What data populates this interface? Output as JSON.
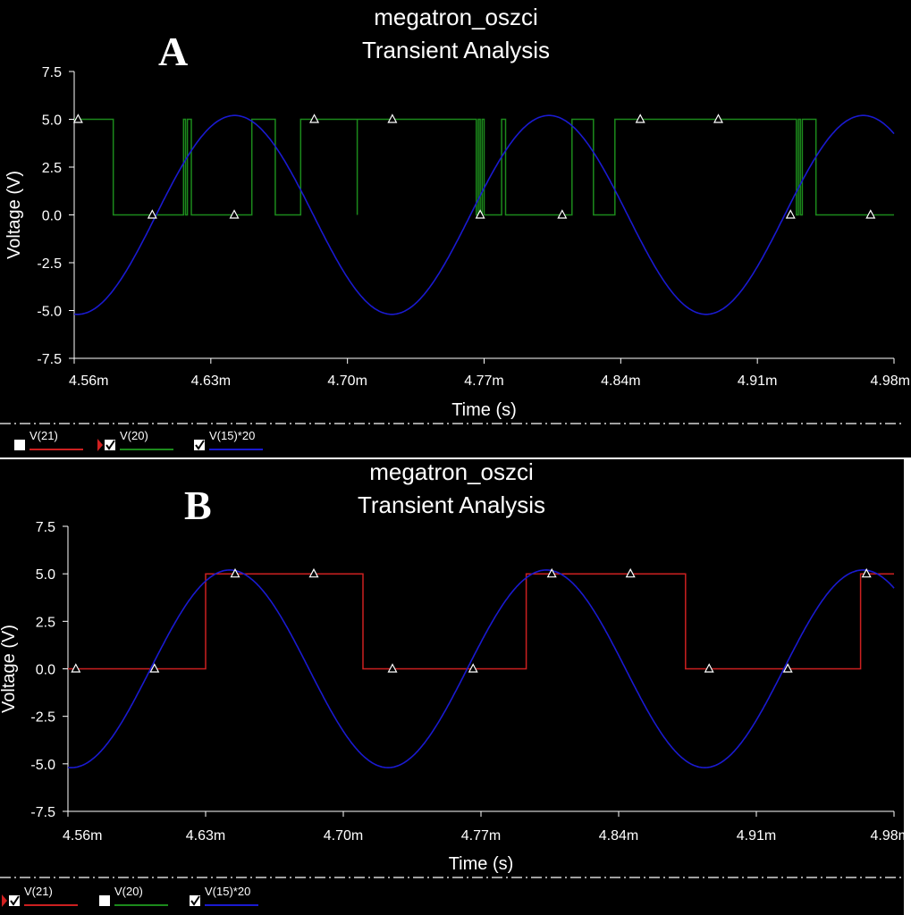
{
  "panels": [
    {
      "letter": "A",
      "title": "megatron_oszci",
      "subtitle": "Transient Analysis",
      "chart_data": {
        "type": "line",
        "title": "megatron_oszci",
        "subtitle": "Transient Analysis",
        "xlabel": "Time (s)",
        "ylabel": "Voltage (V)",
        "xlim": [
          4.56,
          4.98
        ],
        "ylim": [
          -7.5,
          7.5
        ],
        "x_unit": "ms",
        "xticks": [
          "4.56m",
          "4.63m",
          "4.70m",
          "4.77m",
          "4.84m",
          "4.91m",
          "4.98m"
        ],
        "yticks": [
          "7.5",
          "5.0",
          "2.5",
          "0.0",
          "-2.5",
          "-5.0",
          "-7.5"
        ],
        "grid": false,
        "sine": {
          "name": "V(15)*20",
          "color": "#1a1ad0",
          "amplitude": 5.2,
          "period_ms": 0.161,
          "crossing_up_ms": 4.602
        },
        "series": [
          {
            "name": "V(20)",
            "color": "#1c8a1c",
            "kind": "step",
            "x": [
              4.56,
              4.58,
              4.58,
              4.616,
              4.616,
              4.617,
              4.617,
              4.618,
              4.618,
              4.62,
              4.62,
              4.651,
              4.651,
              4.663,
              4.663,
              4.676,
              4.676,
              4.705,
              4.705,
              4.705,
              4.705,
              4.766,
              4.766,
              4.767,
              4.767,
              4.768,
              4.768,
              4.769,
              4.769,
              4.77,
              4.77,
              4.779,
              4.779,
              4.781,
              4.781,
              4.815,
              4.815,
              4.826,
              4.826,
              4.837,
              4.837,
              4.93,
              4.93,
              4.931,
              4.931,
              4.932,
              4.932,
              4.933,
              4.933,
              4.94,
              4.94,
              4.98
            ],
            "y": [
              5,
              5,
              0,
              0,
              5,
              5,
              0,
              0,
              5,
              5,
              0,
              0,
              5,
              5,
              0,
              0,
              5,
              5,
              0,
              5,
              5,
              5,
              0,
              0,
              5,
              5,
              0,
              0,
              5,
              5,
              0,
              0,
              5,
              5,
              0,
              0,
              5,
              5,
              0,
              0,
              5,
              5,
              0,
              0,
              5,
              5,
              0,
              0,
              5,
              5,
              0,
              0
            ]
          }
        ],
        "markers": [
          {
            "x": 4.562,
            "y": 5
          },
          {
            "x": 4.6,
            "y": 0
          },
          {
            "x": 4.642,
            "y": 0
          },
          {
            "x": 4.683,
            "y": 5
          },
          {
            "x": 4.723,
            "y": 5
          },
          {
            "x": 4.768,
            "y": 0
          },
          {
            "x": 4.81,
            "y": 0
          },
          {
            "x": 4.85,
            "y": 5
          },
          {
            "x": 4.89,
            "y": 5
          },
          {
            "x": 4.927,
            "y": 0
          },
          {
            "x": 4.968,
            "y": 0
          }
        ],
        "legend": [
          {
            "label": "V(21)",
            "color": "#cc2020",
            "checked": false,
            "active": false
          },
          {
            "label": "V(20)",
            "color": "#1c8a1c",
            "checked": true,
            "active": true
          },
          {
            "label": "V(15)*20",
            "color": "#1a1ad0",
            "checked": true,
            "active": false
          }
        ]
      }
    },
    {
      "letter": "B",
      "title": "megatron_oszci",
      "subtitle": "Transient Analysis",
      "chart_data": {
        "type": "line",
        "title": "megatron_oszci",
        "subtitle": "Transient Analysis",
        "xlabel": "Time (s)",
        "ylabel": "Voltage (V)",
        "xlim": [
          4.56,
          4.98
        ],
        "ylim": [
          -7.5,
          7.5
        ],
        "x_unit": "ms",
        "xticks": [
          "4.56m",
          "4.63m",
          "4.70m",
          "4.77m",
          "4.84m",
          "4.91m",
          "4.98m"
        ],
        "yticks": [
          "7.5",
          "5.0",
          "2.5",
          "0.0",
          "-2.5",
          "-5.0",
          "-7.5"
        ],
        "grid": false,
        "sine": {
          "name": "V(15)*20",
          "color": "#1a1ad0",
          "amplitude": 5.2,
          "period_ms": 0.161,
          "crossing_up_ms": 4.602
        },
        "series": [
          {
            "name": "V(21)",
            "color": "#cc2020",
            "kind": "step",
            "x": [
              4.56,
              4.63,
              4.63,
              4.71,
              4.71,
              4.793,
              4.793,
              4.874,
              4.874,
              4.963,
              4.963,
              4.98
            ],
            "y": [
              0,
              0,
              5,
              5,
              0,
              0,
              5,
              5,
              0,
              0,
              5,
              5
            ]
          }
        ],
        "markers": [
          {
            "x": 4.564,
            "y": 0
          },
          {
            "x": 4.604,
            "y": 0
          },
          {
            "x": 4.645,
            "y": 5
          },
          {
            "x": 4.685,
            "y": 5
          },
          {
            "x": 4.725,
            "y": 0
          },
          {
            "x": 4.766,
            "y": 0
          },
          {
            "x": 4.806,
            "y": 5
          },
          {
            "x": 4.846,
            "y": 5
          },
          {
            "x": 4.886,
            "y": 0
          },
          {
            "x": 4.926,
            "y": 0
          },
          {
            "x": 4.966,
            "y": 5
          }
        ],
        "legend": [
          {
            "label": "V(21)",
            "color": "#cc2020",
            "checked": true,
            "active": true
          },
          {
            "label": "V(20)",
            "color": "#1c8a1c",
            "checked": false,
            "active": false
          },
          {
            "label": "V(15)*20",
            "color": "#1a1ad0",
            "checked": true,
            "active": false
          }
        ]
      }
    }
  ]
}
